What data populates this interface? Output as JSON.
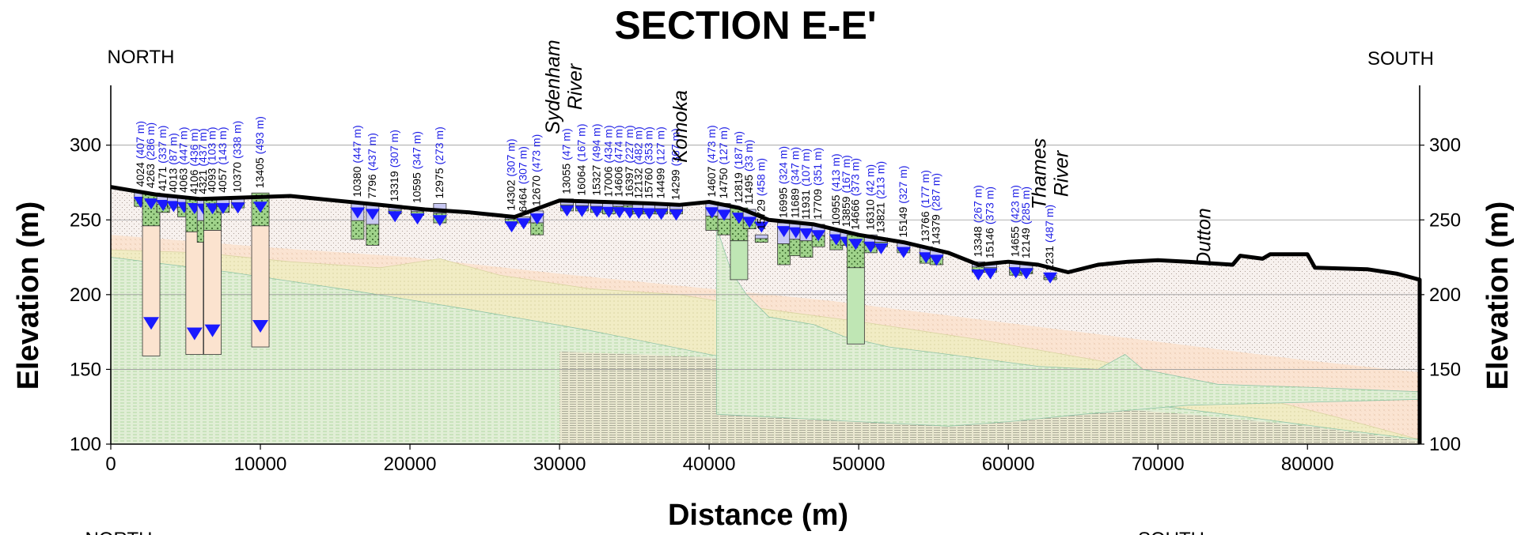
{
  "title": "SECTION E-E'",
  "orientation": {
    "left": "NORTH",
    "right": "SOUTH",
    "left_bottom": "NORTH",
    "right_bottom": "SOUTH"
  },
  "colors": {
    "ground_line": "#000000",
    "water_level": "#1a1aff",
    "well_label": "#1e1ee6",
    "overburden_fill": "#f7f1ee",
    "clay_fill": "#fbe3cf",
    "sand_fill": "#f1ecc4",
    "till_fill": "#dfecd7",
    "bedrock_fill": "#e1eed6",
    "screen_fill": "#c8c8f2",
    "green_unit": "#bfe6b4"
  },
  "chart_data": {
    "type": "cross-section",
    "xlabel": "Distance (m)",
    "ylabel": "Elevation (m)",
    "ylabel_right": "Elevation (m)",
    "xlim": [
      0,
      87500
    ],
    "ylim": [
      100,
      340
    ],
    "x_ticks": [
      {
        "value": 0,
        "label": "0"
      },
      {
        "value": 10000,
        "label": "10000"
      },
      {
        "value": 20000,
        "label": "20000"
      },
      {
        "value": 30000,
        "label": "30000"
      },
      {
        "value": 40000,
        "label": "40000"
      },
      {
        "value": 50000,
        "label": "50000"
      },
      {
        "value": 60000,
        "label": "60000"
      },
      {
        "value": 70000,
        "label": "70000"
      },
      {
        "value": 80000,
        "label": "80000"
      }
    ],
    "y_ticks": [
      {
        "value": 100,
        "label": "100"
      },
      {
        "value": 150,
        "label": "150"
      },
      {
        "value": 200,
        "label": "200"
      },
      {
        "value": 250,
        "label": "250"
      },
      {
        "value": 300,
        "label": "300"
      }
    ],
    "grid": true,
    "ground_surface": [
      [
        0,
        272
      ],
      [
        3000,
        267
      ],
      [
        6000,
        264
      ],
      [
        9000,
        265
      ],
      [
        12000,
        266
      ],
      [
        15000,
        263
      ],
      [
        18000,
        260
      ],
      [
        21000,
        257
      ],
      [
        24000,
        255
      ],
      [
        27000,
        252
      ],
      [
        30000,
        263
      ],
      [
        33000,
        262
      ],
      [
        36000,
        261
      ],
      [
        38000,
        260
      ],
      [
        40000,
        262
      ],
      [
        42000,
        258
      ],
      [
        44000,
        250
      ],
      [
        47000,
        247
      ],
      [
        50000,
        240
      ],
      [
        53000,
        235
      ],
      [
        56000,
        228
      ],
      [
        58000,
        220
      ],
      [
        60000,
        222
      ],
      [
        62000,
        220
      ],
      [
        64000,
        215
      ],
      [
        66000,
        220
      ],
      [
        68000,
        222
      ],
      [
        70000,
        223
      ],
      [
        72000,
        222
      ],
      [
        75000,
        220
      ],
      [
        75500,
        226
      ],
      [
        77000,
        224
      ],
      [
        77500,
        227
      ],
      [
        80000,
        227
      ],
      [
        80500,
        218
      ],
      [
        84000,
        217
      ],
      [
        86000,
        214
      ],
      [
        87500,
        210
      ]
    ],
    "rivers": [
      {
        "name": "Sydenham\nRiver",
        "lines": [
          "Sydenham",
          "River"
        ],
        "x": 30000
      },
      {
        "name": "Komoka",
        "lines": [
          "Komoka"
        ],
        "x": 38500
      },
      {
        "name": "Thames\nRiver",
        "lines": [
          "Thames",
          "River"
        ],
        "x": 62500
      },
      {
        "name": "Dutton",
        "lines": [
          "Dutton"
        ],
        "x": 73500
      }
    ],
    "wells": [
      {
        "id": "4024",
        "dist": "(407 m)",
        "x": 2000,
        "top": 269,
        "bottom": 259
      },
      {
        "id": "4263",
        "dist": "(286 m)",
        "x": 2700,
        "top": 268,
        "bottom": 159,
        "water": 185
      },
      {
        "id": "4171",
        "dist": "(337 m)",
        "x": 3500,
        "top": 266,
        "bottom": 255
      },
      {
        "id": "4013",
        "dist": "(87 m)",
        "x": 4200,
        "top": 265,
        "bottom": 258
      },
      {
        "id": "4063",
        "dist": "(447 m)",
        "x": 4900,
        "top": 265,
        "bottom": 252
      },
      {
        "id": "4106",
        "dist": "(436 m)",
        "x": 5600,
        "top": 264,
        "bottom": 160,
        "water": 178
      },
      {
        "id": "4321",
        "dist": "(437 m)",
        "x": 6200,
        "top": 264,
        "bottom": 235
      },
      {
        "id": "4093",
        "dist": "(103 m)",
        "x": 6800,
        "top": 265,
        "bottom": 160,
        "water": 180
      },
      {
        "id": "4057",
        "dist": "(143 m)",
        "x": 7500,
        "top": 265,
        "bottom": 255
      },
      {
        "id": "10370",
        "dist": "(338 m)",
        "x": 8500,
        "top": 265,
        "bottom": 258
      },
      {
        "id": "13405",
        "dist": "(493 m)",
        "x": 10000,
        "top": 268,
        "bottom": 165,
        "water": 183
      },
      {
        "id": "10380",
        "dist": "(447 m)",
        "x": 16500,
        "top": 262,
        "bottom": 237
      },
      {
        "id": "7796",
        "dist": "(437 m)",
        "x": 17500,
        "top": 261,
        "bottom": 233
      },
      {
        "id": "13319",
        "dist": "(307 m)",
        "x": 19000,
        "top": 259,
        "bottom": 254
      },
      {
        "id": "10595",
        "dist": "(347 m)",
        "x": 20500,
        "top": 258,
        "bottom": 253
      },
      {
        "id": "12975",
        "dist": "(273 m)",
        "x": 22000,
        "top": 261,
        "bottom": 248
      },
      {
        "id": "14302",
        "dist": "(307 m)",
        "x": 26800,
        "top": 253,
        "bottom": 248
      },
      {
        "id": "6464",
        "dist": "(307 m)",
        "x": 27600,
        "top": 252,
        "bottom": 248
      },
      {
        "id": "12670",
        "dist": "(473 m)",
        "x": 28500,
        "top": 256,
        "bottom": 240
      },
      {
        "id": "13055",
        "dist": "(47 m)",
        "x": 30500,
        "top": 264,
        "bottom": 256
      },
      {
        "id": "16064",
        "dist": "(167 m)",
        "x": 31500,
        "top": 263,
        "bottom": 256
      },
      {
        "id": "15327",
        "dist": "(494 m)",
        "x": 32500,
        "top": 263,
        "bottom": 255
      },
      {
        "id": "17006",
        "dist": "(434 m)",
        "x": 33300,
        "top": 262,
        "bottom": 254
      },
      {
        "id": "14606",
        "dist": "(474 m)",
        "x": 34000,
        "top": 262,
        "bottom": 256
      },
      {
        "id": "16397",
        "dist": "(227 m)",
        "x": 34700,
        "top": 262,
        "bottom": 257
      },
      {
        "id": "12132",
        "dist": "(482 m)",
        "x": 35300,
        "top": 261,
        "bottom": 254
      },
      {
        "id": "15760",
        "dist": "(353 m)",
        "x": 36000,
        "top": 261,
        "bottom": 254
      },
      {
        "id": "14499",
        "dist": "(127 m)",
        "x": 36800,
        "top": 261,
        "bottom": 254
      },
      {
        "id": "14299",
        "dist": "(367 m)",
        "x": 37800,
        "top": 260,
        "bottom": 254
      },
      {
        "id": "14607",
        "dist": "(473 m)",
        "x": 40200,
        "top": 262,
        "bottom": 243
      },
      {
        "id": "14750",
        "dist": "(127 m)",
        "x": 41000,
        "top": 261,
        "bottom": 240
      },
      {
        "id": "12819",
        "dist": "(187 m)",
        "x": 42000,
        "top": 258,
        "bottom": 210
      },
      {
        "id": "11495",
        "dist": "(33 m)",
        "x": 42700,
        "top": 257,
        "bottom": 244
      },
      {
        "id": "15729",
        "dist": "(458 m)",
        "x": 43500,
        "top": 240,
        "bottom": 235
      },
      {
        "id": "16995",
        "dist": "(324 m)",
        "x": 45000,
        "top": 248,
        "bottom": 220
      },
      {
        "id": "11689",
        "dist": "(347 m)",
        "x": 45800,
        "top": 248,
        "bottom": 226
      },
      {
        "id": "11931",
        "dist": "(107 m)",
        "x": 46500,
        "top": 247,
        "bottom": 225
      },
      {
        "id": "17709",
        "dist": "(351 m)",
        "x": 47300,
        "top": 247,
        "bottom": 232
      },
      {
        "id": "10955",
        "dist": "(413 m)",
        "x": 48500,
        "top": 243,
        "bottom": 230
      },
      {
        "id": "13859",
        "dist": "(167 m)",
        "x": 49200,
        "top": 242,
        "bottom": 233
      },
      {
        "id": "14666",
        "dist": "(373 m)",
        "x": 49800,
        "top": 240,
        "bottom": 167
      },
      {
        "id": "16310",
        "dist": "(42 m)",
        "x": 50800,
        "top": 240,
        "bottom": 228
      },
      {
        "id": "13821",
        "dist": "(213 m)",
        "x": 51500,
        "top": 238,
        "bottom": 232
      },
      {
        "id": "15149",
        "dist": "(327 m)",
        "x": 53000,
        "top": 235,
        "bottom": 228
      },
      {
        "id": "13766",
        "dist": "(177 m)",
        "x": 54500,
        "top": 232,
        "bottom": 221
      },
      {
        "id": "14379",
        "dist": "(287 m)",
        "x": 55200,
        "top": 230,
        "bottom": 220
      },
      {
        "id": "13348",
        "dist": "(267 m)",
        "x": 58000,
        "top": 222,
        "bottom": 215
      },
      {
        "id": "15146",
        "dist": "(373 m)",
        "x": 58800,
        "top": 221,
        "bottom": 215
      },
      {
        "id": "14655",
        "dist": "(423 m)",
        "x": 60500,
        "top": 222,
        "bottom": 213
      },
      {
        "id": "12149",
        "dist": "(285 m)",
        "x": 61200,
        "top": 221,
        "bottom": 214
      },
      {
        "id": "2231",
        "dist": "(487 m)",
        "x": 62800,
        "top": 213,
        "bottom": 210
      }
    ]
  }
}
